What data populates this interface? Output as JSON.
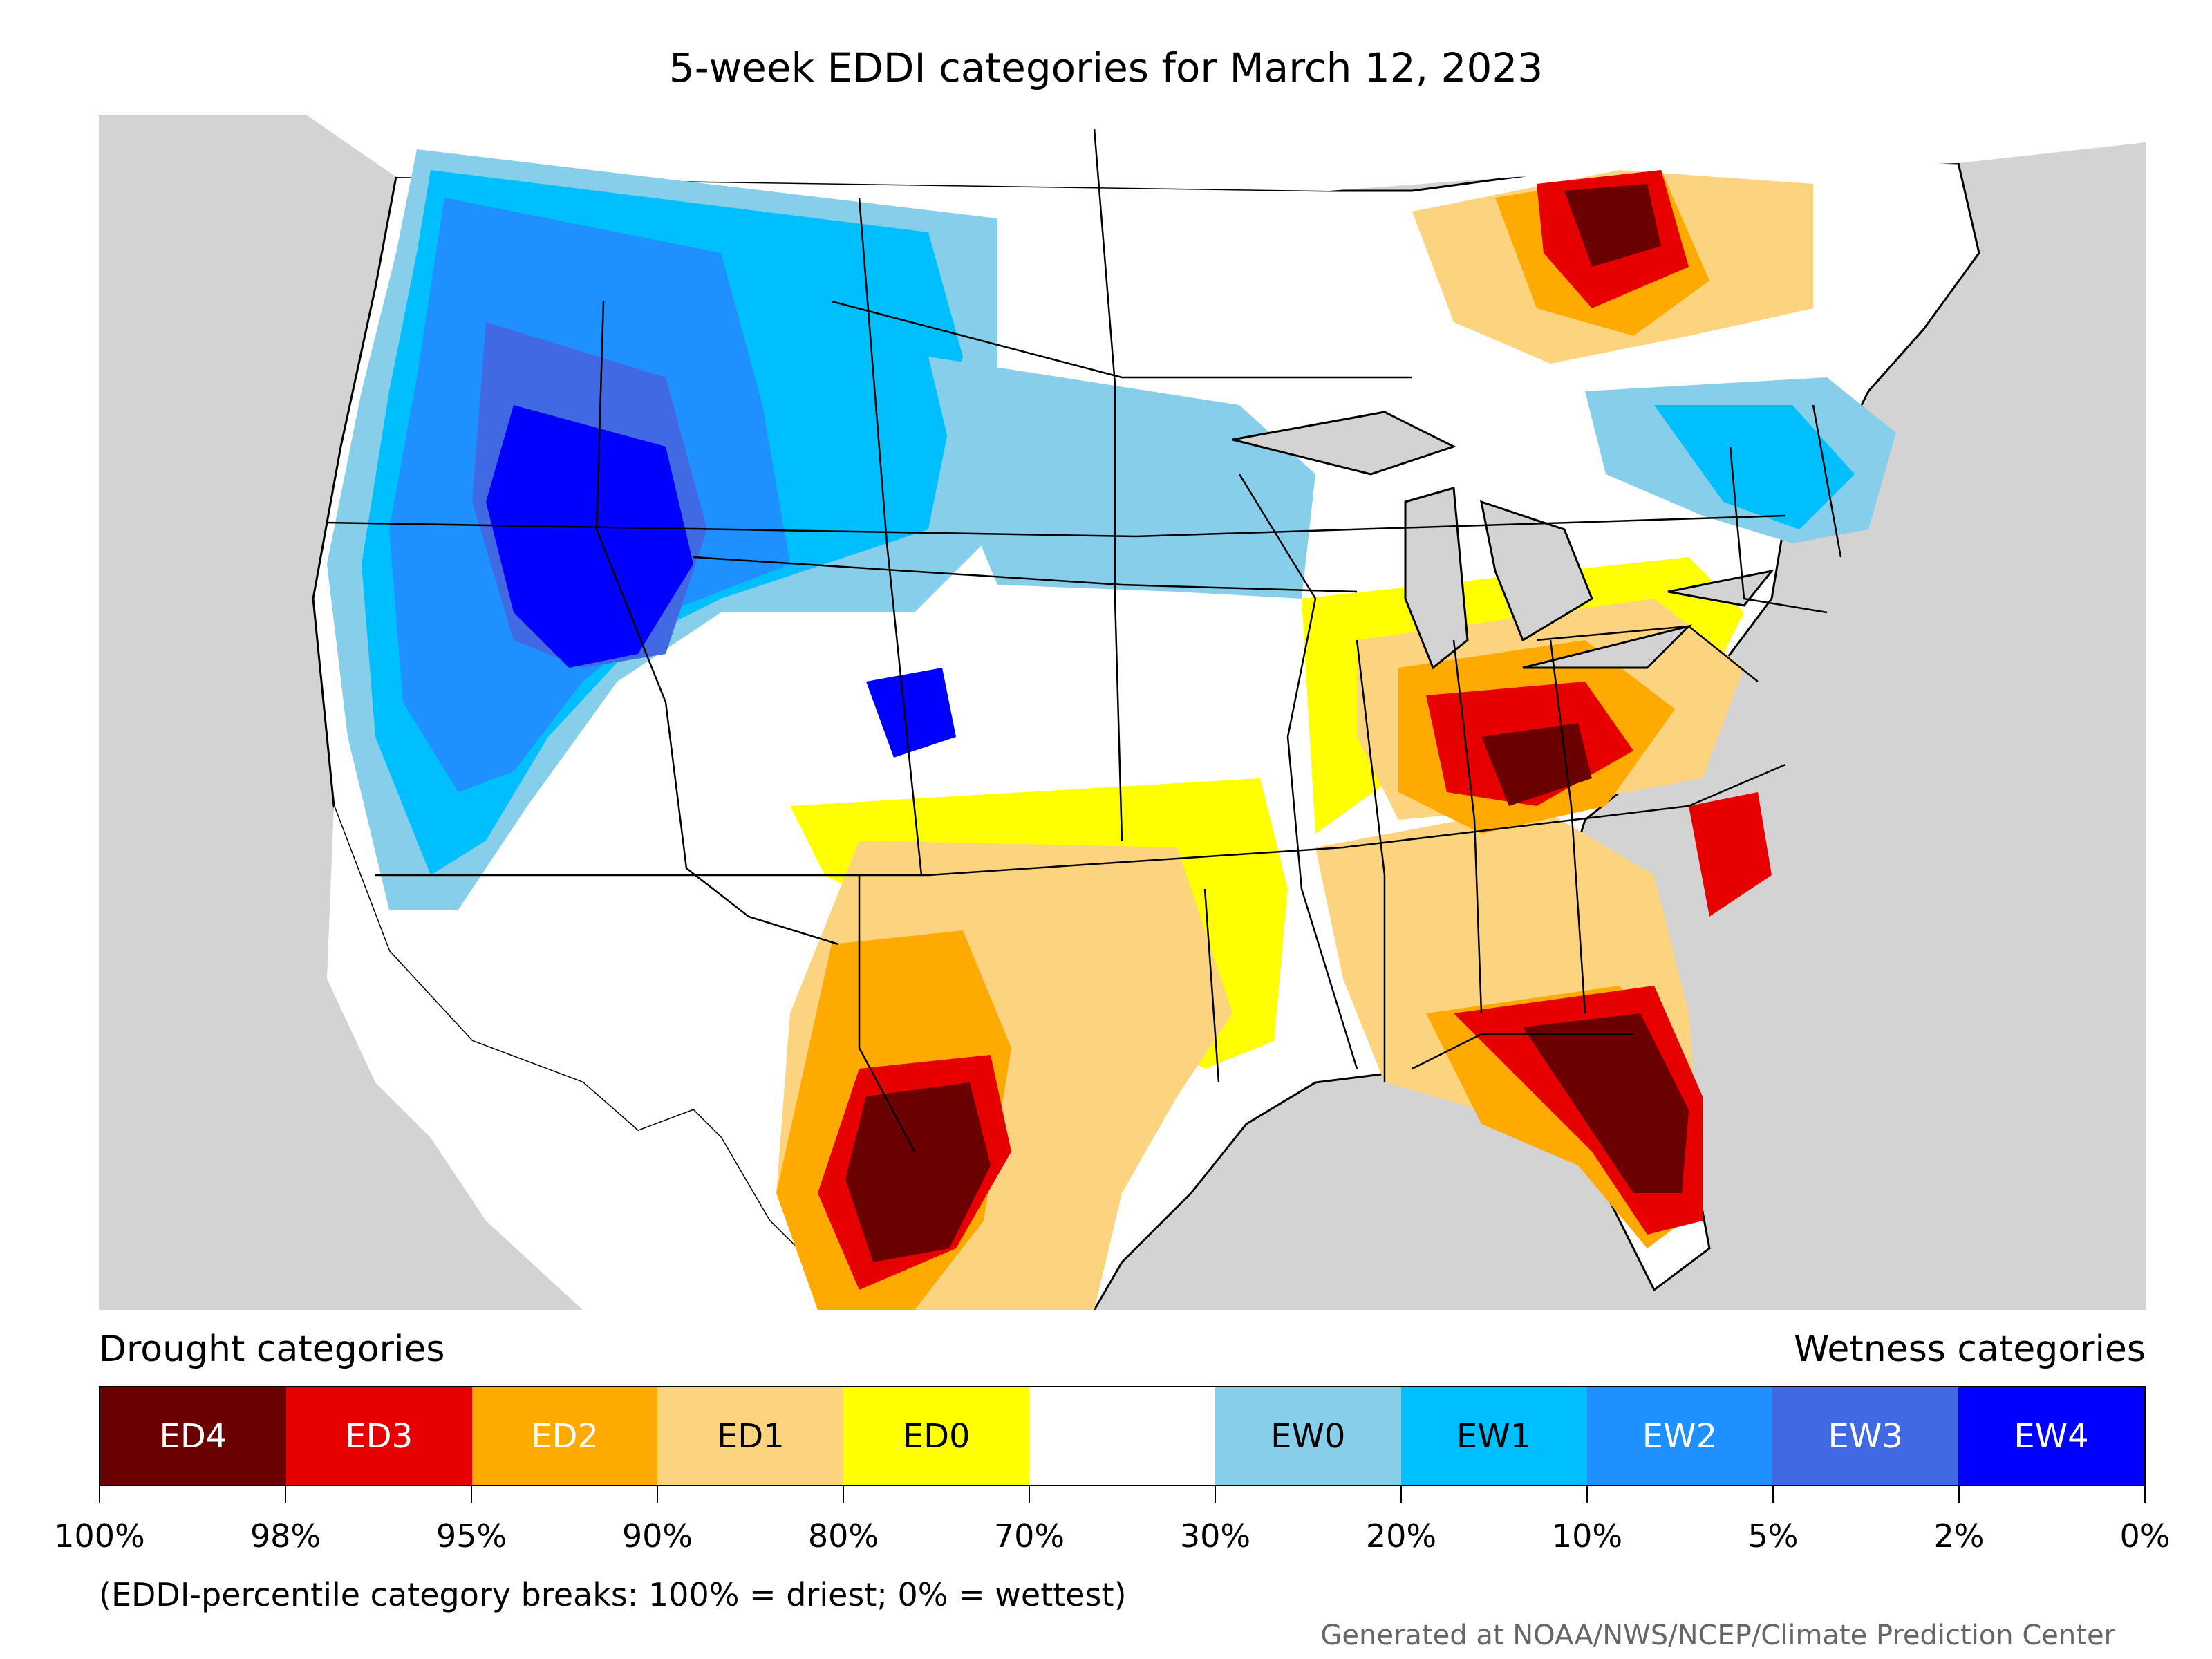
{
  "title": "5-week EDDI categories for March 12, 2023",
  "legend": {
    "left_heading": "Drought categories",
    "right_heading": "Wetness categories",
    "categories": [
      {
        "label": "ED4",
        "color": "#6b0000",
        "text_color": "#ffffff"
      },
      {
        "label": "ED3",
        "color": "#e60000",
        "text_color": "#ffffff"
      },
      {
        "label": "ED2",
        "color": "#ffaa00",
        "text_color": "#ffffff"
      },
      {
        "label": "ED1",
        "color": "#fcd37f",
        "text_color": "#000000"
      },
      {
        "label": "ED0",
        "color": "#ffff00",
        "text_color": "#000000"
      },
      {
        "label": "",
        "color": "#ffffff",
        "text_color": "#000000"
      },
      {
        "label": "EW0",
        "color": "#87ceeb",
        "text_color": "#000000"
      },
      {
        "label": "EW1",
        "color": "#00bfff",
        "text_color": "#000000"
      },
      {
        "label": "EW2",
        "color": "#1e90ff",
        "text_color": "#ffffff"
      },
      {
        "label": "EW3",
        "color": "#4169e1",
        "text_color": "#ffffff"
      },
      {
        "label": "EW4",
        "color": "#0000ff",
        "text_color": "#ffffff"
      }
    ],
    "breaks": [
      "100%",
      "98%",
      "95%",
      "90%",
      "80%",
      "70%",
      "30%",
      "20%",
      "10%",
      "5%",
      "2%",
      "0%"
    ]
  },
  "footnote": "(EDDI-percentile category breaks: 100% = driest; 0% = wettest)",
  "credit": "Generated at NOAA/NWS/NCEP/Climate Prediction Center",
  "map_colors": {
    "background": "#d3d3d3",
    "land": "#ffffff",
    "border": "#000000"
  }
}
